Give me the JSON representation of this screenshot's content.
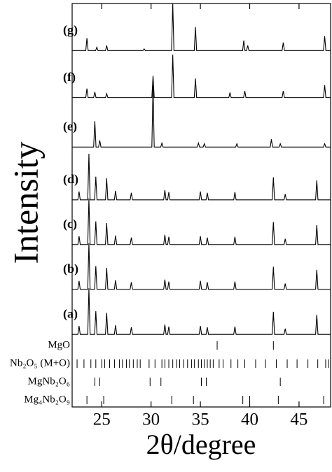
{
  "chart_data": {
    "type": "line",
    "xlabel": "2θ/degree",
    "ylabel": "Intensity",
    "xlim": [
      22.0,
      48.2
    ],
    "ylim": [
      0,
      120
    ],
    "xticks": [
      25,
      30,
      35,
      40,
      45
    ],
    "color": "#000000",
    "series": [
      {
        "name": "(a)",
        "x": [
          22.0,
          22.58,
          22.7,
          22.82,
          23.58,
          23.7,
          23.82,
          24.28,
          24.4,
          24.52,
          25.38,
          25.5,
          25.62,
          26.28,
          26.4,
          26.52,
          27.88,
          28.0,
          28.12,
          31.28,
          31.4,
          31.52,
          31.68,
          31.8,
          31.92,
          34.88,
          35.0,
          35.12,
          35.58,
          35.7,
          35.82,
          38.38,
          38.5,
          38.62,
          42.28,
          42.4,
          42.52,
          43.48,
          43.6,
          43.72,
          46.68,
          46.8,
          46.92,
          48.2
        ],
        "values": [
          21.6,
          21.6,
          24.1,
          21.6,
          21.6,
          35.3,
          21.6,
          21.6,
          28.5,
          21.6,
          21.6,
          28.0,
          21.6,
          21.6,
          24.3,
          21.6,
          21.6,
          23.7,
          21.6,
          21.6,
          24.5,
          21.6,
          21.6,
          23.9,
          21.6,
          21.6,
          24.1,
          21.6,
          21.6,
          23.7,
          21.6,
          21.6,
          23.9,
          21.6,
          21.6,
          28.3,
          21.6,
          21.6,
          23.3,
          21.6,
          21.6,
          27.4,
          21.6,
          21.6
        ]
      },
      {
        "name": "(b)",
        "x": [
          22.0,
          22.58,
          22.7,
          22.82,
          23.58,
          23.7,
          23.82,
          24.28,
          24.4,
          24.52,
          25.38,
          25.5,
          25.62,
          26.28,
          26.4,
          26.52,
          27.88,
          28.0,
          28.12,
          31.28,
          31.4,
          31.52,
          31.68,
          31.8,
          31.92,
          34.88,
          35.0,
          35.12,
          35.58,
          35.7,
          35.82,
          38.38,
          38.5,
          38.62,
          42.28,
          42.4,
          42.52,
          43.48,
          43.6,
          43.72,
          46.68,
          46.8,
          46.92,
          48.2
        ],
        "values": [
          35.0,
          35.0,
          37.5,
          35.0,
          35.0,
          48.7,
          35.0,
          35.0,
          41.9,
          35.0,
          35.0,
          41.4,
          35.0,
          35.0,
          37.7,
          35.0,
          35.0,
          37.1,
          35.0,
          35.0,
          37.9,
          35.0,
          35.0,
          37.3,
          35.0,
          35.0,
          37.5,
          35.0,
          35.0,
          37.1,
          35.0,
          35.0,
          37.3,
          35.0,
          35.0,
          41.7,
          35.0,
          35.0,
          36.7,
          35.0,
          35.0,
          40.8,
          35.0,
          35.0
        ]
      },
      {
        "name": "(c)",
        "x": [
          22.0,
          22.58,
          22.7,
          22.82,
          23.58,
          23.7,
          23.82,
          24.28,
          24.4,
          24.52,
          25.38,
          25.5,
          25.62,
          26.28,
          26.4,
          26.52,
          27.88,
          28.0,
          28.12,
          31.28,
          31.4,
          31.52,
          31.68,
          31.8,
          31.92,
          34.88,
          35.0,
          35.12,
          35.58,
          35.7,
          35.82,
          38.38,
          38.5,
          38.62,
          42.28,
          42.4,
          42.52,
          43.48,
          43.6,
          43.72,
          46.68,
          46.8,
          46.92,
          48.2
        ],
        "values": [
          48.3,
          48.3,
          50.8,
          48.3,
          48.3,
          62.0,
          48.3,
          48.3,
          55.2,
          48.3,
          48.3,
          54.7,
          48.3,
          48.3,
          51.0,
          48.3,
          48.3,
          50.4,
          48.3,
          48.3,
          51.2,
          48.3,
          48.3,
          50.6,
          48.3,
          48.3,
          50.8,
          48.3,
          48.3,
          50.4,
          48.3,
          48.3,
          50.6,
          48.3,
          48.3,
          55.0,
          48.3,
          48.3,
          50.0,
          48.3,
          48.3,
          54.1,
          48.3,
          48.3
        ]
      },
      {
        "name": "(d)",
        "x": [
          22.0,
          22.58,
          22.7,
          22.82,
          23.58,
          23.7,
          23.82,
          24.28,
          24.4,
          24.52,
          25.38,
          25.5,
          25.62,
          26.28,
          26.4,
          26.52,
          27.88,
          28.0,
          28.12,
          31.28,
          31.4,
          31.52,
          31.68,
          31.8,
          31.92,
          34.88,
          35.0,
          35.12,
          35.58,
          35.7,
          35.82,
          38.38,
          38.5,
          38.62,
          42.28,
          42.4,
          42.52,
          43.48,
          43.6,
          43.72,
          46.68,
          46.8,
          46.92,
          48.2
        ],
        "values": [
          61.6,
          61.6,
          64.1,
          61.6,
          61.6,
          75.3,
          61.6,
          61.6,
          68.5,
          61.6,
          61.6,
          68.0,
          61.6,
          61.6,
          64.3,
          61.6,
          61.6,
          63.7,
          61.6,
          61.6,
          64.5,
          61.6,
          61.6,
          63.9,
          61.6,
          61.6,
          64.1,
          61.6,
          61.6,
          63.7,
          61.6,
          61.6,
          63.9,
          61.6,
          61.6,
          68.3,
          61.6,
          61.6,
          63.3,
          61.6,
          61.6,
          67.4,
          61.6,
          61.6
        ]
      },
      {
        "name": "(e)",
        "x": [
          22.0,
          24.18,
          24.3,
          24.42,
          24.68,
          24.8,
          24.92,
          30.08,
          30.2,
          30.32,
          30.98,
          31.1,
          31.22,
          34.68,
          34.8,
          34.92,
          35.28,
          35.4,
          35.52,
          38.58,
          38.7,
          38.82,
          42.08,
          42.2,
          42.32,
          42.98,
          43.1,
          43.22,
          47.48,
          47.6,
          47.72,
          48.2
        ],
        "values": [
          77.3,
          77.3,
          85.0,
          77.3,
          77.3,
          79.3,
          77.3,
          77.3,
          95.6,
          77.3,
          77.3,
          78.5,
          77.3,
          77.3,
          78.5,
          77.3,
          77.3,
          78.3,
          77.3,
          77.3,
          78.3,
          77.3,
          77.3,
          79.6,
          77.3,
          77.3,
          78.3,
          77.3,
          77.3,
          78.3,
          77.3,
          77.3
        ]
      },
      {
        "name": "(f)",
        "x": [
          22.0,
          23.38,
          23.5,
          23.62,
          24.18,
          24.3,
          24.42,
          25.38,
          25.5,
          25.62,
          30.08,
          30.2,
          30.32,
          32.08,
          32.2,
          32.32,
          34.38,
          34.5,
          34.62,
          37.88,
          38.0,
          38.12,
          39.38,
          39.5,
          39.62,
          43.28,
          43.4,
          43.52,
          47.48,
          47.6,
          47.72,
          48.2
        ],
        "values": [
          92.0,
          92.0,
          94.7,
          92.0,
          92.0,
          93.7,
          92.0,
          92.0,
          93.2,
          92.0,
          92.0,
          98.5,
          92.0,
          92.0,
          104.8,
          92.0,
          92.0,
          97.7,
          92.0,
          92.0,
          93.5,
          92.0,
          92.0,
          94.0,
          92.0,
          92.0,
          94.0,
          92.0,
          92.0,
          95.7,
          92.0,
          92.0
        ]
      },
      {
        "name": "(g)",
        "x": [
          22.0,
          23.38,
          23.5,
          23.62,
          24.38,
          24.5,
          24.62,
          25.38,
          25.5,
          25.62,
          29.18,
          29.3,
          29.42,
          32.08,
          32.2,
          32.32,
          34.38,
          34.5,
          34.62,
          39.28,
          39.4,
          39.52,
          39.68,
          39.8,
          39.92,
          43.28,
          43.4,
          43.52,
          47.48,
          47.6,
          47.72,
          48.2
        ],
        "values": [
          106.0,
          106.0,
          109.7,
          106.0,
          106.0,
          107.0,
          106.0,
          106.0,
          107.5,
          106.0,
          106.0,
          106.5,
          106.0,
          106.0,
          120.0,
          106.0,
          106.0,
          113.0,
          106.0,
          106.0,
          109.0,
          106.0,
          106.0,
          107.5,
          106.0,
          106.0,
          108.4,
          106.0,
          106.0,
          110.3,
          106.0,
          106.0
        ]
      }
    ],
    "references": [
      {
        "name": "MgO",
        "positions": [
          36.7,
          42.4
        ]
      },
      {
        "name": "Nb₂O₅ (M+O)",
        "positions": [
          22.5,
          23.2,
          23.9,
          24.4,
          25.0,
          25.3,
          25.8,
          26.3,
          26.8,
          27.1,
          27.5,
          27.8,
          28.2,
          28.6,
          28.9,
          29.8,
          30.4,
          31.1,
          31.4,
          31.8,
          32.2,
          32.6,
          32.9,
          33.3,
          33.7,
          34.1,
          34.4,
          34.8,
          35.1,
          35.4,
          35.7,
          36.0,
          36.3,
          36.9,
          37.3,
          38.1,
          38.8,
          39.5,
          40.6,
          41.6,
          42.7,
          43.8,
          44.8,
          45.9,
          46.9,
          47.7,
          48.0
        ]
      },
      {
        "name": "MgNb₂O₆",
        "positions": [
          24.3,
          24.8,
          29.9,
          31.0,
          35.1,
          35.6,
          43.1
        ]
      },
      {
        "name": "Mg₄Nb₂O₉",
        "positions": [
          23.5,
          25.2,
          32.1,
          34.3,
          39.3,
          40.0,
          42.9,
          47.5
        ]
      }
    ]
  }
}
